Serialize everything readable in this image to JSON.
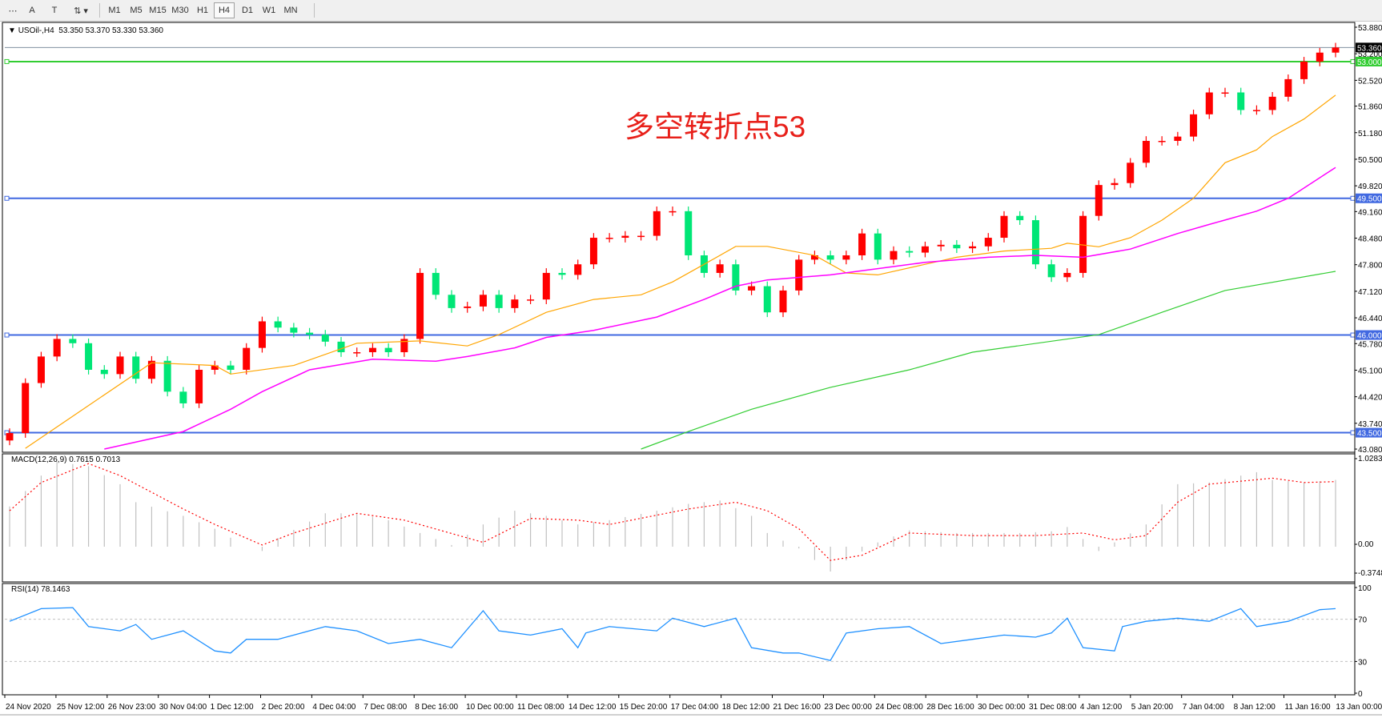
{
  "toolbar": {
    "tools": [
      {
        "name": "fibonacci-fan-icon",
        "glyph": "⋯"
      },
      {
        "name": "text-tool-icon",
        "glyph": "A"
      },
      {
        "name": "text-label-icon",
        "glyph": "T"
      },
      {
        "name": "arrows-tool-icon",
        "glyph": "⇅ ▾"
      }
    ],
    "timeframes": [
      "M1",
      "M5",
      "M15",
      "M30",
      "H1",
      "H4",
      "D1",
      "W1",
      "MN"
    ],
    "selected_timeframe": "H4"
  },
  "chart": {
    "symbol_label": "USOil-,H4",
    "ohlc_label": "53.350 53.370 53.330 53.360",
    "annotation": "多空转折点53",
    "colors": {
      "up": "#ff0000",
      "down": "#00e676",
      "ma_fast": "#ffa500",
      "ma_mid": "#ff00ff",
      "ma_slow": "#32cd32",
      "hline_blue": "#4169e1",
      "hline_green": "#32cd32"
    },
    "horizontal_lines": [
      {
        "price": 53.0,
        "label": "53.000",
        "color": "#32cd32"
      },
      {
        "price": 49.5,
        "label": "49.500",
        "color": "#4169e1"
      },
      {
        "price": 46.0,
        "label": "46.000",
        "color": "#4169e1"
      },
      {
        "price": 43.5,
        "label": "43.500",
        "color": "#4169e1"
      }
    ],
    "current_price": {
      "price": 53.36,
      "label": "53.360"
    },
    "price_ticks": [
      "53.880",
      "53.200",
      "52.520",
      "51.860",
      "51.180",
      "50.500",
      "49.820",
      "49.160",
      "48.480",
      "47.800",
      "47.120",
      "46.440",
      "45.780",
      "45.100",
      "44.420",
      "43.740",
      "43.080"
    ],
    "time_labels": [
      "24 Nov 2020",
      "25 Nov 12:00",
      "26 Nov 23:00",
      "30 Nov 04:00",
      "1 Dec 12:00",
      "2 Dec 20:00",
      "4 Dec 04:00",
      "7 Dec 08:00",
      "8 Dec 16:00",
      "10 Dec 00:00",
      "11 Dec 08:00",
      "14 Dec 12:00",
      "15 Dec 20:00",
      "17 Dec 04:00",
      "18 Dec 12:00",
      "21 Dec 16:00",
      "23 Dec 00:00",
      "24 Dec 08:00",
      "28 Dec 16:00",
      "30 Dec 00:00",
      "31 Dec 08:00",
      "4 Jan 12:00",
      "5 Jan 20:00",
      "7 Jan 04:00",
      "8 Jan 12:00",
      "11 Jan 16:00",
      "13 Jan 00:00"
    ]
  },
  "macd": {
    "label": "MACD(12,26,9) 0.7615 0.7013",
    "ticks": [
      "1.0283",
      "0.00",
      "-0.3748"
    ]
  },
  "rsi": {
    "label": "RSI(14) 78.1463",
    "ticks": [
      "100",
      "70",
      "30",
      "0"
    ]
  },
  "chart_data": {
    "type": "candlestick",
    "ylim": [
      43.08,
      53.88
    ],
    "closes": [
      43.49,
      44.77,
      45.45,
      45.9,
      45.79,
      45.11,
      45.0,
      45.45,
      44.88,
      45.34,
      44.55,
      44.25,
      45.11,
      45.22,
      45.11,
      45.67,
      46.35,
      46.19,
      46.06,
      46.01,
      45.83,
      45.56,
      45.56,
      45.67,
      45.56,
      45.9,
      47.59,
      47.03,
      46.69,
      46.73,
      47.03,
      46.69,
      46.91,
      46.91,
      47.59,
      47.54,
      47.81,
      48.49,
      48.49,
      48.54,
      48.54,
      49.17,
      49.17,
      48.04,
      47.59,
      47.81,
      47.14,
      47.25,
      46.58,
      47.14,
      47.93,
      48.04,
      47.93,
      48.04,
      48.6,
      47.93,
      48.15,
      48.11,
      48.27,
      48.31,
      48.22,
      48.27,
      48.49,
      49.05,
      48.94,
      47.81,
      47.48,
      47.59,
      49.05,
      49.84,
      49.89,
      50.41,
      50.97,
      50.97,
      51.08,
      51.65,
      52.21,
      52.21,
      51.76,
      51.76,
      52.1,
      52.55,
      53.0,
      53.23,
      53.36
    ],
    "ma_fast": [
      [
        1,
        43.1
      ],
      [
        9,
        45.29
      ],
      [
        13,
        45.22
      ],
      [
        14,
        45.0
      ],
      [
        18,
        45.22
      ],
      [
        22,
        45.79
      ],
      [
        26,
        45.85
      ],
      [
        29,
        45.72
      ],
      [
        31,
        46.01
      ],
      [
        34,
        46.58
      ],
      [
        37,
        46.91
      ],
      [
        40,
        47.03
      ],
      [
        42,
        47.36
      ],
      [
        44,
        47.81
      ],
      [
        46,
        48.27
      ],
      [
        48,
        48.27
      ],
      [
        51,
        48.04
      ],
      [
        53,
        47.59
      ],
      [
        55,
        47.54
      ],
      [
        58,
        47.81
      ],
      [
        60,
        47.99
      ],
      [
        63,
        48.15
      ],
      [
        66,
        48.22
      ],
      [
        67,
        48.35
      ],
      [
        69,
        48.26
      ],
      [
        71,
        48.49
      ],
      [
        73,
        48.94
      ],
      [
        75,
        49.5
      ],
      [
        77,
        50.41
      ],
      [
        79,
        50.74
      ],
      [
        80,
        51.08
      ],
      [
        82,
        51.53
      ],
      [
        84,
        52.14
      ]
    ],
    "ma_mid": [
      [
        6,
        43.08
      ],
      [
        11,
        43.53
      ],
      [
        14,
        44.1
      ],
      [
        16,
        44.55
      ],
      [
        19,
        45.11
      ],
      [
        23,
        45.38
      ],
      [
        27,
        45.33
      ],
      [
        29,
        45.45
      ],
      [
        32,
        45.67
      ],
      [
        34,
        45.94
      ],
      [
        37,
        46.12
      ],
      [
        41,
        46.46
      ],
      [
        44,
        46.91
      ],
      [
        46,
        47.25
      ],
      [
        48,
        47.41
      ],
      [
        52,
        47.54
      ],
      [
        55,
        47.7
      ],
      [
        58,
        47.86
      ],
      [
        62,
        47.99
      ],
      [
        65,
        48.04
      ],
      [
        68,
        47.99
      ],
      [
        71,
        48.2
      ],
      [
        74,
        48.6
      ],
      [
        76,
        48.83
      ],
      [
        79,
        49.17
      ],
      [
        81,
        49.5
      ],
      [
        84,
        50.29
      ]
    ],
    "ma_slow": [
      [
        40,
        43.08
      ],
      [
        43,
        43.53
      ],
      [
        47,
        44.1
      ],
      [
        52,
        44.66
      ],
      [
        57,
        45.11
      ],
      [
        61,
        45.56
      ],
      [
        69,
        46.01
      ],
      [
        73,
        46.58
      ],
      [
        77,
        47.14
      ],
      [
        84,
        47.63
      ]
    ],
    "macd_hist": [
      [
        0,
        0.47
      ],
      [
        2,
        0.83
      ],
      [
        3,
        0.99
      ],
      [
        5,
        0.94
      ],
      [
        7,
        0.73
      ],
      [
        8,
        0.52
      ],
      [
        11,
        0.36
      ],
      [
        13,
        0.21
      ],
      [
        15,
        0
      ],
      [
        16,
        -0.05
      ],
      [
        17,
        0.1
      ],
      [
        20,
        0.39
      ],
      [
        22,
        0.39
      ],
      [
        24,
        0.31
      ],
      [
        26,
        0.16
      ],
      [
        28,
        0.02
      ],
      [
        30,
        0.26
      ],
      [
        32,
        0.42
      ],
      [
        34,
        0.36
      ],
      [
        36,
        0.26
      ],
      [
        38,
        0.31
      ],
      [
        41,
        0.42
      ],
      [
        43,
        0.5
      ],
      [
        45,
        0.54
      ],
      [
        47,
        0.36
      ],
      [
        48,
        0.16
      ],
      [
        50,
        -0.02
      ],
      [
        52,
        -0.29
      ],
      [
        53,
        -0.16
      ],
      [
        55,
        0.05
      ],
      [
        57,
        0.19
      ],
      [
        60,
        0.16
      ],
      [
        62,
        0.16
      ],
      [
        64,
        0.16
      ],
      [
        66,
        0.18
      ],
      [
        67,
        0.23
      ],
      [
        69,
        -0.05
      ],
      [
        70,
        0.05
      ],
      [
        72,
        0.26
      ],
      [
        74,
        0.73
      ],
      [
        76,
        0.75
      ],
      [
        79,
        0.87
      ],
      [
        80,
        0.78
      ],
      [
        82,
        0.75
      ],
      [
        84,
        0.78
      ]
    ],
    "macd_signal": [
      [
        0,
        0.42
      ],
      [
        2,
        0.75
      ],
      [
        5,
        0.97
      ],
      [
        7,
        0.83
      ],
      [
        11,
        0.44
      ],
      [
        13,
        0.26
      ],
      [
        16,
        0.02
      ],
      [
        18,
        0.16
      ],
      [
        22,
        0.39
      ],
      [
        25,
        0.31
      ],
      [
        30,
        0.05
      ],
      [
        33,
        0.33
      ],
      [
        36,
        0.31
      ],
      [
        38,
        0.26
      ],
      [
        43,
        0.44
      ],
      [
        46,
        0.52
      ],
      [
        48,
        0.42
      ],
      [
        50,
        0.21
      ],
      [
        52,
        -0.16
      ],
      [
        54,
        -0.1
      ],
      [
        57,
        0.16
      ],
      [
        61,
        0.13
      ],
      [
        65,
        0.13
      ],
      [
        68,
        0.16
      ],
      [
        70,
        0.08
      ],
      [
        72,
        0.13
      ],
      [
        74,
        0.52
      ],
      [
        76,
        0.73
      ],
      [
        80,
        0.8
      ],
      [
        82,
        0.75
      ],
      [
        84,
        0.76
      ]
    ],
    "rsi": [
      [
        0,
        68
      ],
      [
        2,
        80
      ],
      [
        4,
        81
      ],
      [
        5,
        63
      ],
      [
        7,
        59
      ],
      [
        8,
        65
      ],
      [
        9,
        51
      ],
      [
        11,
        59
      ],
      [
        13,
        40
      ],
      [
        14,
        38
      ],
      [
        15,
        51
      ],
      [
        17,
        51
      ],
      [
        20,
        63
      ],
      [
        22,
        59
      ],
      [
        24,
        47
      ],
      [
        26,
        51
      ],
      [
        28,
        43
      ],
      [
        30,
        78
      ],
      [
        31,
        59
      ],
      [
        33,
        55
      ],
      [
        35,
        61
      ],
      [
        36,
        43
      ],
      [
        36.5,
        57
      ],
      [
        38,
        63
      ],
      [
        41,
        59
      ],
      [
        42,
        71
      ],
      [
        44,
        63
      ],
      [
        46,
        71
      ],
      [
        47,
        43
      ],
      [
        49,
        38
      ],
      [
        50,
        38
      ],
      [
        52,
        31
      ],
      [
        53,
        57
      ],
      [
        55,
        61
      ],
      [
        57,
        63
      ],
      [
        59,
        47
      ],
      [
        61,
        51
      ],
      [
        63,
        55
      ],
      [
        65,
        53
      ],
      [
        66,
        57
      ],
      [
        67,
        71
      ],
      [
        68,
        43
      ],
      [
        70,
        40
      ],
      [
        70.5,
        63
      ],
      [
        72,
        68
      ],
      [
        74,
        71
      ],
      [
        76,
        68
      ],
      [
        78,
        80
      ],
      [
        79,
        63
      ],
      [
        81,
        68
      ],
      [
        83,
        79
      ],
      [
        84,
        80
      ]
    ]
  }
}
